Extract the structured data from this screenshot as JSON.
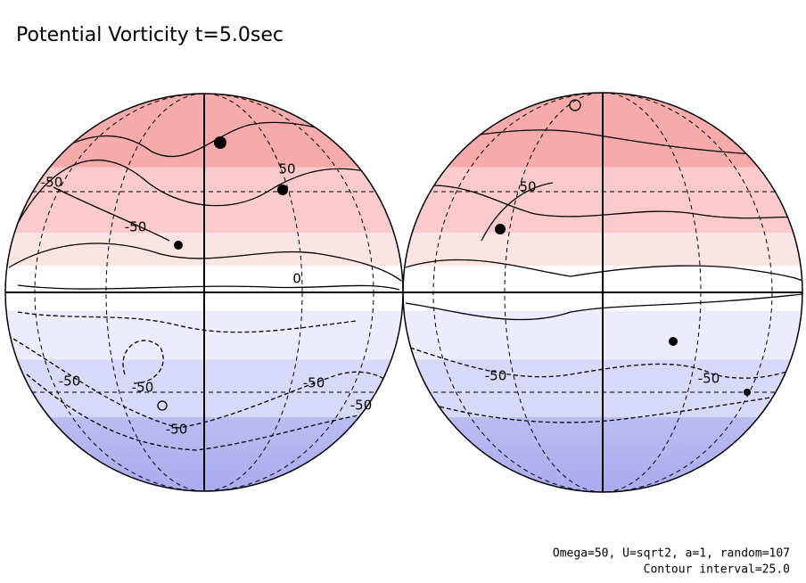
{
  "title": "Potential Vorticity t=5.0sec",
  "contour_labels": [
    "50",
    "-50",
    "-50",
    "0",
    "-50",
    "-50",
    "-50",
    "-50",
    "-50",
    "50",
    "-50",
    "-50"
  ],
  "footer": [
    "Omega=50, U=sqrt2, a=1, random=107",
    "Contour interval=25.0"
  ]
}
